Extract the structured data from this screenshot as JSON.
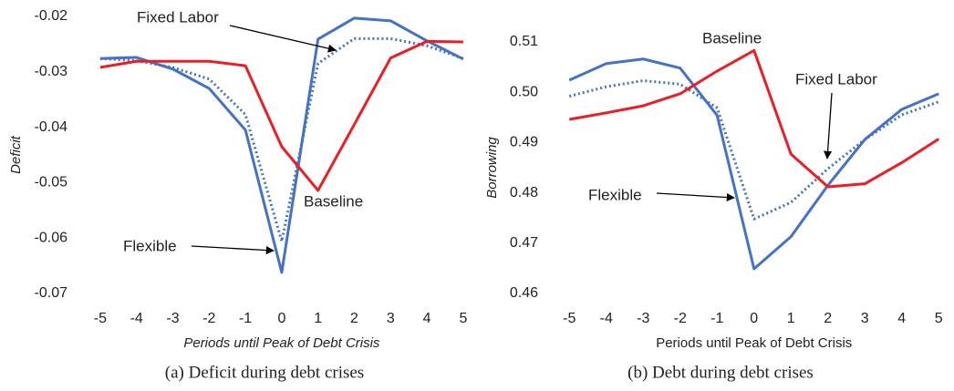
{
  "chart_data": [
    {
      "type": "line",
      "caption": "(a) Deficit during debt crises",
      "ylabel": "Deficit",
      "xlabel": "Periods until Peak of Debt Crisis",
      "categories": [
        -5,
        -4,
        -3,
        -2,
        -1,
        0,
        1,
        2,
        3,
        4,
        5
      ],
      "ylim": [
        -0.07,
        -0.02
      ],
      "yticks": [
        -0.07,
        -0.06,
        -0.05,
        -0.04,
        -0.03,
        -0.02
      ],
      "grid": false,
      "series": [
        {
          "name": "Flexible",
          "color": "#4472c4",
          "line_style": "solid",
          "values": [
            -0.0276,
            -0.0274,
            -0.0295,
            -0.033,
            -0.0405,
            -0.0662,
            -0.0241,
            -0.0203,
            -0.0208,
            -0.0244,
            -0.0277
          ]
        },
        {
          "name": "Fixed Labor",
          "color": "#4472c4",
          "line_style": "dotted",
          "values": [
            -0.0276,
            -0.028,
            -0.0292,
            -0.0313,
            -0.0377,
            -0.0606,
            -0.0285,
            -0.024,
            -0.024,
            -0.0253,
            -0.0276
          ]
        },
        {
          "name": "Baseline",
          "color": "#ee1c25",
          "line_style": "solid",
          "values": [
            -0.0292,
            -0.0281,
            -0.0281,
            -0.0281,
            -0.0289,
            -0.0435,
            -0.0514,
            -0.0395,
            -0.0275,
            -0.0245,
            -0.0246
          ]
        }
      ]
    },
    {
      "type": "line",
      "caption": "(b) Debt during debt crises",
      "ylabel": "Borrowing",
      "xlabel": "Periods until Peak of Debt Crisis",
      "categories": [
        -5,
        -4,
        -3,
        -2,
        -1,
        0,
        1,
        2,
        3,
        4,
        5
      ],
      "ylim": [
        0.46,
        0.51
      ],
      "yticks": [
        0.46,
        0.47,
        0.48,
        0.49,
        {
          "value": 0.5,
          "label": "0.50"
        },
        0.51
      ],
      "grid": false,
      "series": [
        {
          "name": "Flexible",
          "color": "#4472c4",
          "line_style": "solid",
          "values": [
            0.5024,
            0.5057,
            0.5066,
            0.5048,
            0.4954,
            0.4649,
            0.4713,
            0.4815,
            0.4906,
            0.4966,
            0.4997
          ]
        },
        {
          "name": "Fixed Labor",
          "color": "#4472c4",
          "line_style": "dotted",
          "values": [
            0.4992,
            0.5011,
            0.5023,
            0.5016,
            0.4969,
            0.4748,
            0.4781,
            0.4848,
            0.4906,
            0.4955,
            0.4981
          ]
        },
        {
          "name": "Baseline",
          "color": "#ee1c25",
          "line_style": "solid",
          "values": [
            0.4946,
            0.4959,
            0.4973,
            0.4997,
            0.5042,
            0.5083,
            0.4877,
            0.4812,
            0.4818,
            0.486,
            0.4907
          ]
        }
      ]
    }
  ]
}
